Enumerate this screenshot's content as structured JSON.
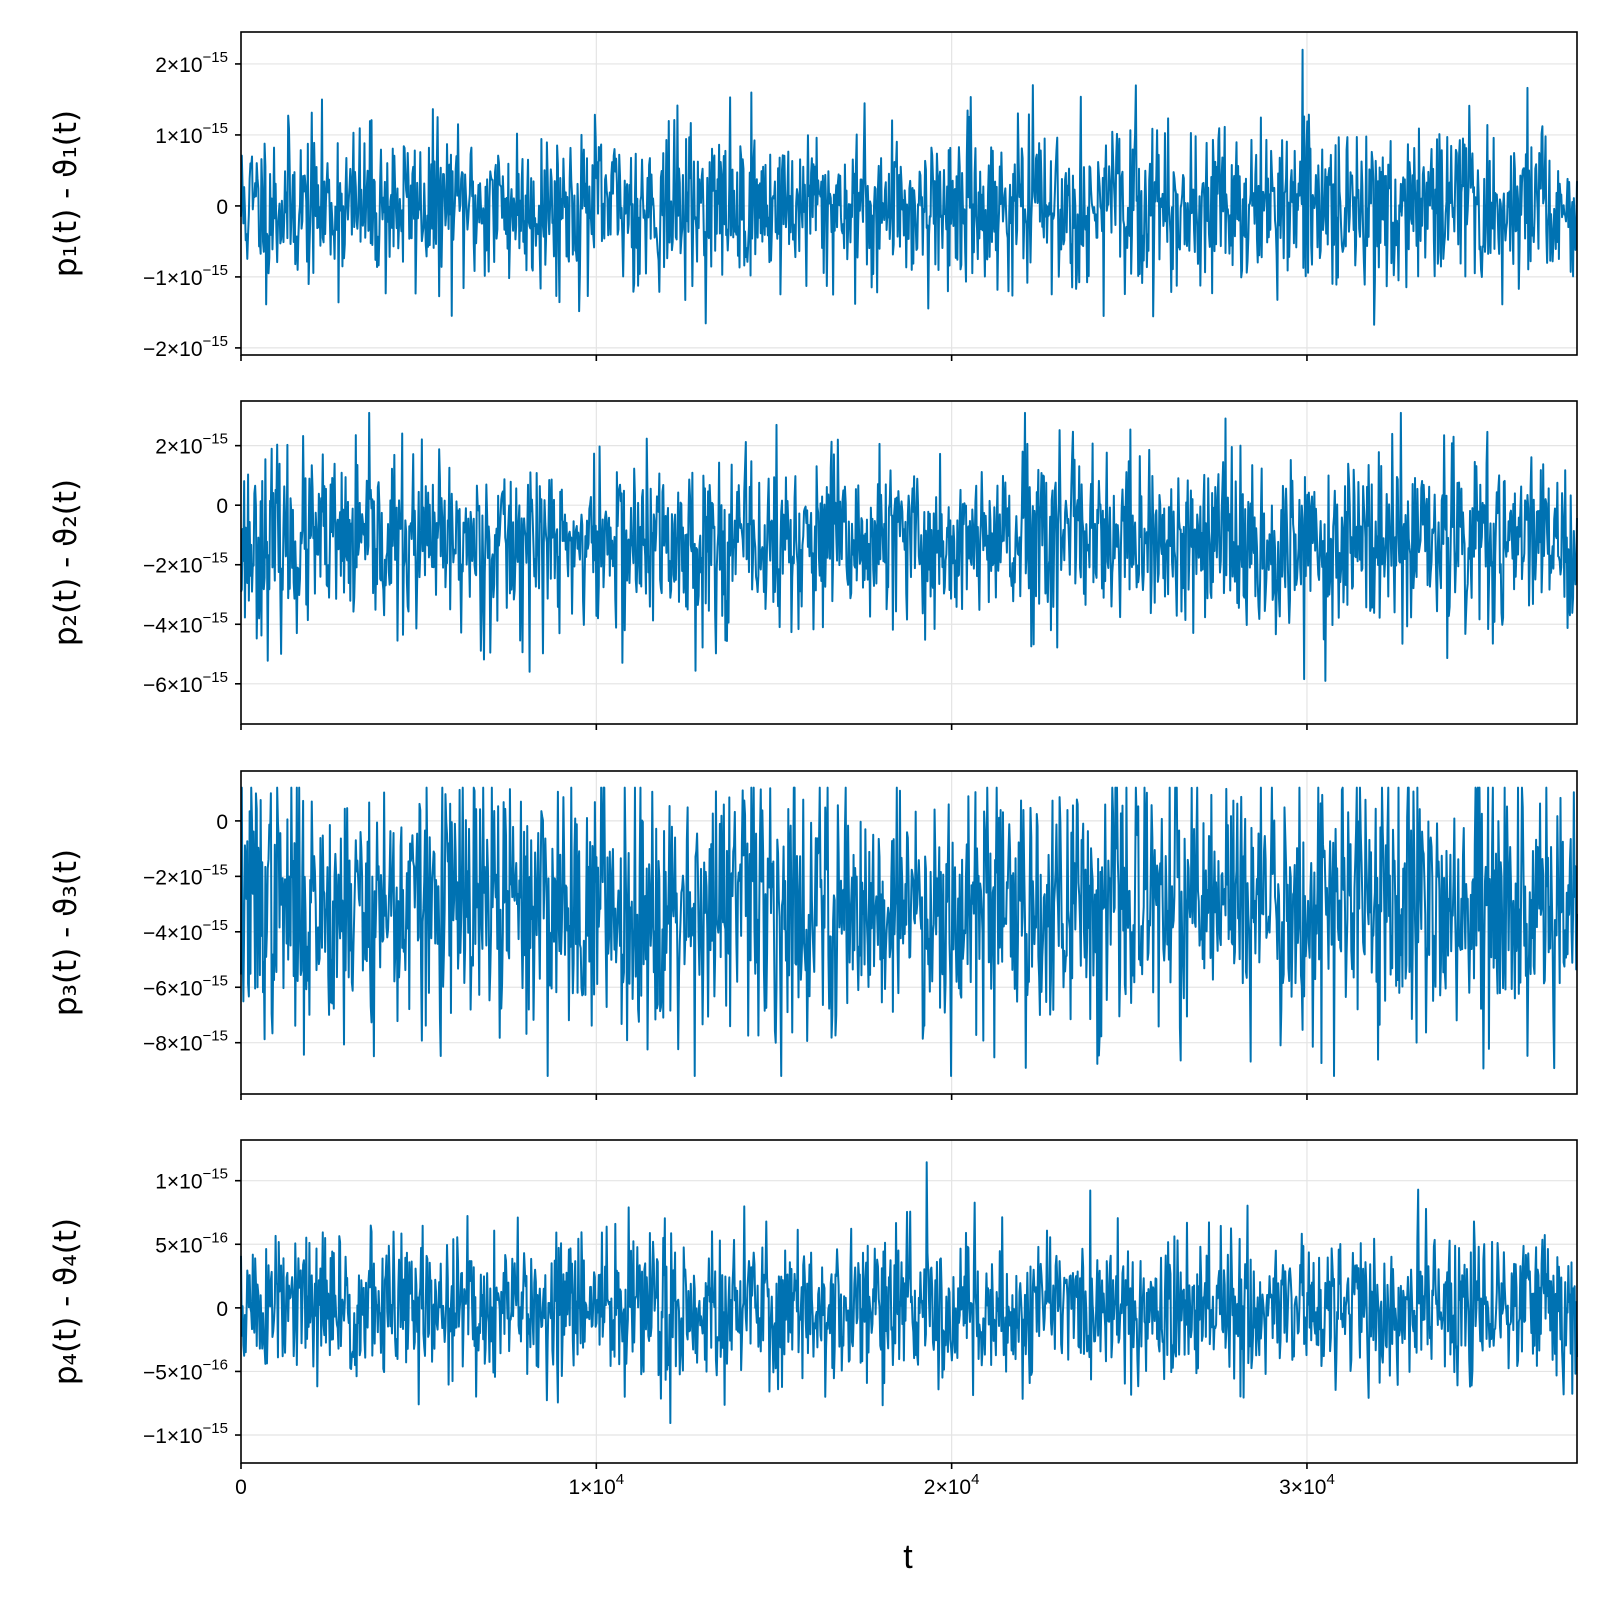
{
  "figure": {
    "series_color": "#0072b2",
    "xlabel": "t"
  },
  "chart_data": [
    {
      "type": "line",
      "ylabel": "p₁(t) - ϑ₁(t)",
      "xlim": [
        0,
        37600
      ],
      "ylim": [
        -2.1e-15,
        2.45e-15
      ],
      "x_ticks": [
        {
          "value": 0,
          "mant": "0",
          "exp": ""
        },
        {
          "value": 10000,
          "mant": "1×10",
          "exp": "4"
        },
        {
          "value": 20000,
          "mant": "2×10",
          "exp": "4"
        },
        {
          "value": 30000,
          "mant": "3×10",
          "exp": "4"
        }
      ],
      "x_ticklabels_visible": false,
      "y_ticks": [
        {
          "value": 2e-15,
          "mant": "2×10",
          "exp": "−15"
        },
        {
          "value": 1e-15,
          "mant": "1×10",
          "exp": "−15"
        },
        {
          "value": 0,
          "mant": "0",
          "exp": ""
        },
        {
          "value": -1e-15,
          "mant": "−1×10",
          "exp": "−15"
        },
        {
          "value": -2e-15,
          "mant": "−2×10",
          "exp": "−15"
        }
      ],
      "grid": true,
      "series": [
        {
          "n_points": 1700,
          "baseline": 0,
          "noise_sd": 5.5e-16,
          "max": 2.2e-15,
          "min": -1.9e-15,
          "seed": 11
        }
      ]
    },
    {
      "type": "line",
      "ylabel": "p₂(t) - ϑ₂(t)",
      "xlim": [
        0,
        37600
      ],
      "ylim": [
        -7.35e-15,
        3.5e-15
      ],
      "x_ticks": [
        {
          "value": 0,
          "mant": "0",
          "exp": ""
        },
        {
          "value": 10000,
          "mant": "1×10",
          "exp": "4"
        },
        {
          "value": 20000,
          "mant": "2×10",
          "exp": "4"
        },
        {
          "value": 30000,
          "mant": "3×10",
          "exp": "4"
        }
      ],
      "x_ticklabels_visible": false,
      "y_ticks": [
        {
          "value": 2e-15,
          "mant": "2×10",
          "exp": "−15"
        },
        {
          "value": 0,
          "mant": "0",
          "exp": ""
        },
        {
          "value": -2e-15,
          "mant": "−2×10",
          "exp": "−15"
        },
        {
          "value": -4e-15,
          "mant": "−4×10",
          "exp": "−15"
        },
        {
          "value": -6e-15,
          "mant": "−6×10",
          "exp": "−15"
        }
      ],
      "grid": true,
      "series": [
        {
          "n_points": 1700,
          "baseline": -1.3e-15,
          "noise_sd": 1.45e-15,
          "max": 3.1e-15,
          "min": -6.8e-15,
          "seed": 23
        }
      ]
    },
    {
      "type": "line",
      "ylabel": "p₃(t) - ϑ₃(t)",
      "xlim": [
        0,
        37600
      ],
      "ylim": [
        -9.85e-15,
        1.8e-15
      ],
      "x_ticks": [
        {
          "value": 0,
          "mant": "0",
          "exp": ""
        },
        {
          "value": 10000,
          "mant": "1×10",
          "exp": "4"
        },
        {
          "value": 20000,
          "mant": "2×10",
          "exp": "4"
        },
        {
          "value": 30000,
          "mant": "3×10",
          "exp": "4"
        }
      ],
      "x_ticklabels_visible": false,
      "y_ticks": [
        {
          "value": 0,
          "mant": "0",
          "exp": ""
        },
        {
          "value": -2e-15,
          "mant": "−2×10",
          "exp": "−15"
        },
        {
          "value": -4e-15,
          "mant": "−4×10",
          "exp": "−15"
        },
        {
          "value": -6e-15,
          "mant": "−6×10",
          "exp": "−15"
        },
        {
          "value": -8e-15,
          "mant": "−8×10",
          "exp": "−15"
        }
      ],
      "grid": true,
      "series": [
        {
          "n_points": 1700,
          "baseline": -3e-15,
          "noise_sd": 2.3e-15,
          "max": 1.2e-15,
          "min": -9.2e-15,
          "seed": 37
        }
      ]
    },
    {
      "type": "line",
      "ylabel": "p₄(t) - ϑ₄(t)",
      "xlim": [
        0,
        37600
      ],
      "ylim": [
        -1.22e-15,
        1.32e-15
      ],
      "x_ticks": [
        {
          "value": 0,
          "mant": "0",
          "exp": ""
        },
        {
          "value": 10000,
          "mant": "1×10",
          "exp": "4"
        },
        {
          "value": 20000,
          "mant": "2×10",
          "exp": "4"
        },
        {
          "value": 30000,
          "mant": "3×10",
          "exp": "4"
        }
      ],
      "x_ticklabels_visible": true,
      "y_ticks": [
        {
          "value": 1e-15,
          "mant": "1×10",
          "exp": "−15"
        },
        {
          "value": 5e-16,
          "mant": "5×10",
          "exp": "−16"
        },
        {
          "value": 0,
          "mant": "0",
          "exp": ""
        },
        {
          "value": -5e-16,
          "mant": "−5×10",
          "exp": "−16"
        },
        {
          "value": -1e-15,
          "mant": "−1×10",
          "exp": "−15"
        }
      ],
      "grid": true,
      "series": [
        {
          "n_points": 1700,
          "baseline": 0,
          "noise_sd": 3e-16,
          "max": 1.2e-15,
          "min": -1.1e-15,
          "seed": 51
        }
      ]
    }
  ]
}
